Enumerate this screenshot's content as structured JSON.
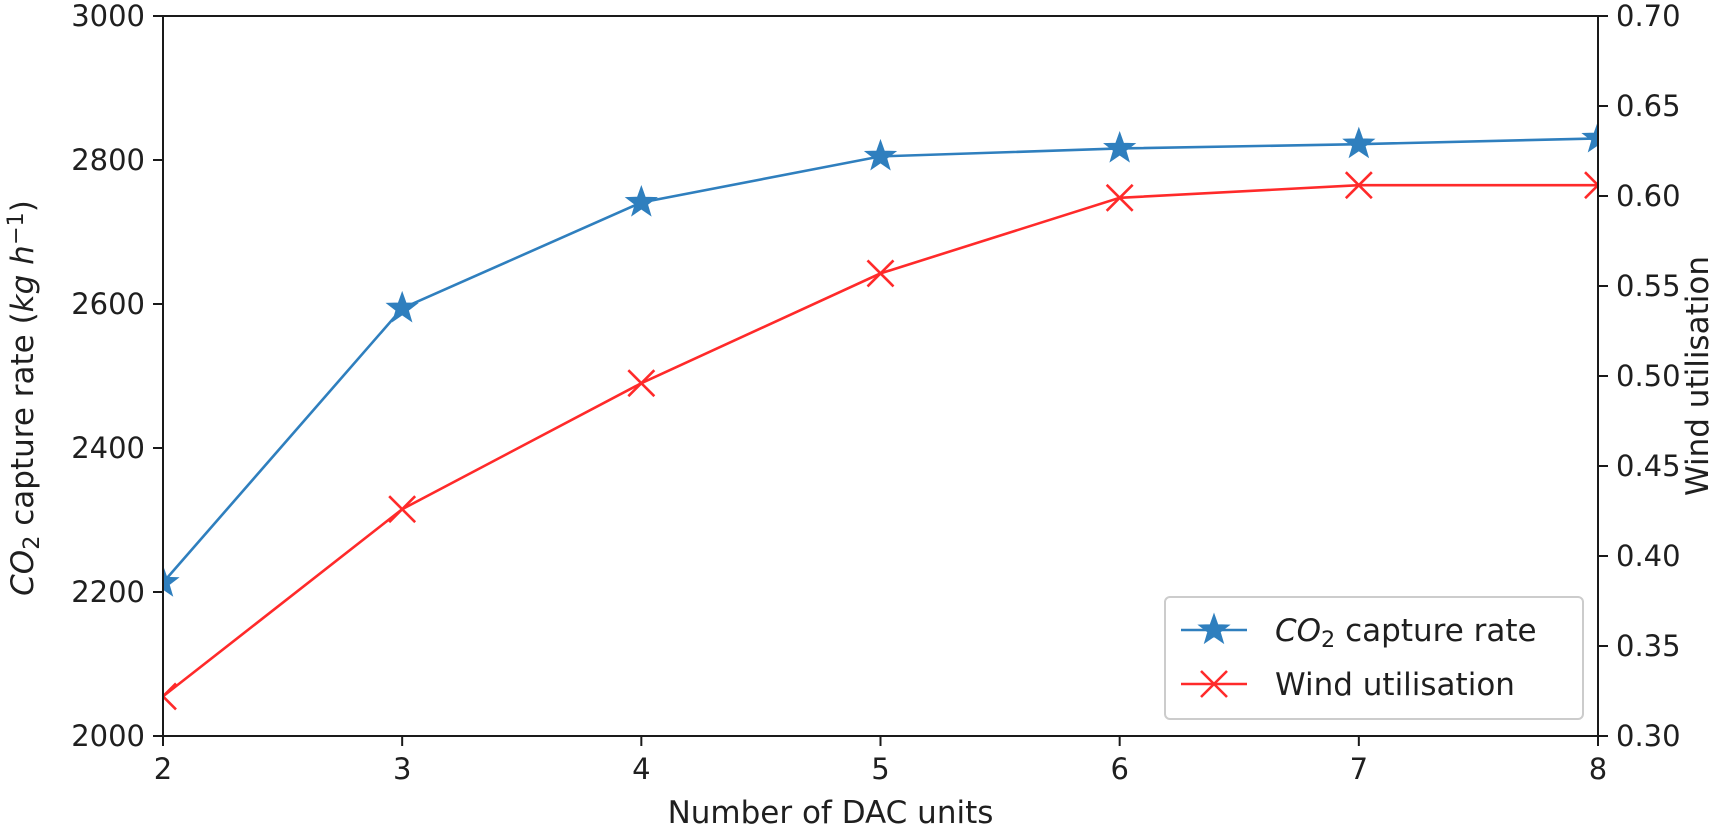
{
  "chart_data": {
    "type": "line",
    "x": [
      2,
      3,
      4,
      5,
      6,
      7,
      8
    ],
    "xlabel": "Number of DAC units",
    "xlim": [
      2,
      8
    ],
    "xticks": [
      "2",
      "3",
      "4",
      "5",
      "6",
      "7",
      "8"
    ],
    "grid": false,
    "legend_placement": "lower-right",
    "left_axis": {
      "label_parts": [
        {
          "text": "CO",
          "style": "italic"
        },
        {
          "text": "2",
          "style": "subscript"
        },
        {
          "text": " capture rate (",
          "style": "normal"
        },
        {
          "text": "kg h",
          "style": "italic"
        },
        {
          "text": "−1",
          "style": "superscript"
        },
        {
          "text": ")",
          "style": "normal"
        }
      ],
      "ylim": [
        2000,
        3000
      ],
      "ticks": [
        2000,
        2200,
        2400,
        2600,
        2800,
        3000
      ],
      "tick_labels": [
        "2000",
        "2200",
        "2400",
        "2600",
        "2800",
        "3000"
      ]
    },
    "right_axis": {
      "label": "Wind utilisation",
      "ylim": [
        0.3,
        0.7
      ],
      "ticks": [
        0.3,
        0.35,
        0.4,
        0.45,
        0.5,
        0.55,
        0.6,
        0.65,
        0.7
      ],
      "tick_labels": [
        "0.30",
        "0.35",
        "0.40",
        "0.45",
        "0.50",
        "0.55",
        "0.60",
        "0.65",
        "0.70"
      ]
    },
    "series": [
      {
        "name_parts": [
          {
            "text": "CO",
            "style": "italic"
          },
          {
            "text": "2",
            "style": "subscript"
          },
          {
            "text": " capture rate",
            "style": "normal"
          }
        ],
        "axis": "left",
        "color": "#2f7fbe",
        "marker": "star",
        "values": [
          2213,
          2594,
          2741,
          2805,
          2816,
          2822,
          2830
        ]
      },
      {
        "name": "Wind utilisation",
        "axis": "right",
        "color": "#ff2a2a",
        "marker": "x",
        "values": [
          0.322,
          0.426,
          0.496,
          0.557,
          0.599,
          0.606,
          0.606
        ]
      }
    ]
  }
}
